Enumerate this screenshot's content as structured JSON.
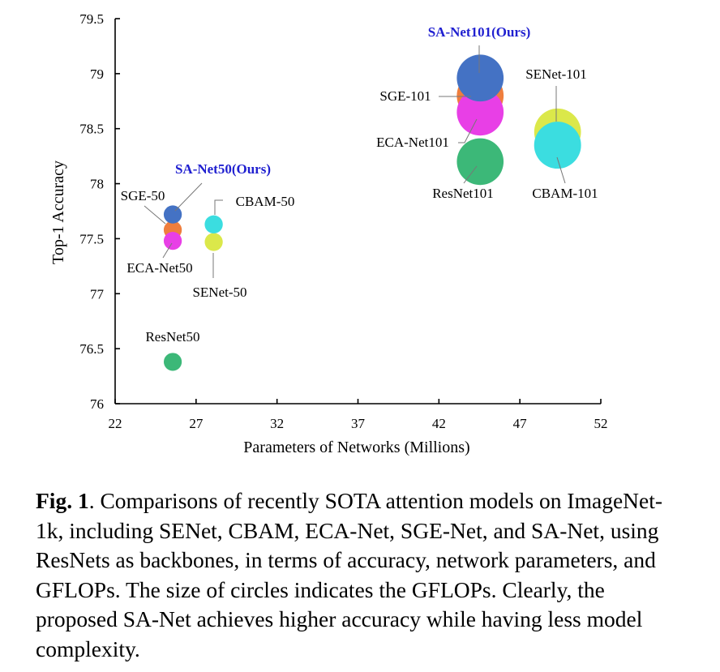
{
  "chart_data": {
    "type": "scatter",
    "title": "",
    "xlabel": "Parameters of Networks  (Millions)",
    "ylabel": "Top-1 Accuracy",
    "xlim": [
      22,
      52
    ],
    "ylim": [
      76,
      79.5
    ],
    "xticks": [
      "22",
      "27",
      "32",
      "37",
      "42",
      "47",
      "52"
    ],
    "yticks": [
      "76",
      "76.5",
      "77",
      "77.5",
      "78",
      "78.5",
      "79",
      "79.5"
    ],
    "size_encodes": "GFLOPs",
    "points": [
      {
        "label": "ResNet50",
        "x": 25.56,
        "y": 76.38,
        "gflops": 4.12,
        "color": "#3cb878",
        "highlight": false
      },
      {
        "label": "SENet-50",
        "x": 28.09,
        "y": 77.47,
        "gflops": 4.13,
        "color": "#dbe84a",
        "highlight": false
      },
      {
        "label": "CBAM-50",
        "x": 28.09,
        "y": 77.63,
        "gflops": 4.14,
        "color": "#3bdde0",
        "highlight": false
      },
      {
        "label": "SGE-50",
        "x": 25.56,
        "y": 77.58,
        "gflops": 4.13,
        "color": "#ef7e3d",
        "highlight": false
      },
      {
        "label": "ECA-Net50",
        "x": 25.56,
        "y": 77.48,
        "gflops": 4.13,
        "color": "#e83fe6",
        "highlight": false
      },
      {
        "label": "SA-Net50(Ours)",
        "x": 25.56,
        "y": 77.72,
        "gflops": 4.13,
        "color": "#4472c4",
        "highlight": true
      },
      {
        "label": "ResNet101",
        "x": 44.55,
        "y": 78.2,
        "gflops": 7.85,
        "color": "#3cb878",
        "highlight": false
      },
      {
        "label": "SENet-101",
        "x": 49.33,
        "y": 78.47,
        "gflops": 7.86,
        "color": "#dbe84a",
        "highlight": false
      },
      {
        "label": "CBAM-101",
        "x": 49.33,
        "y": 78.35,
        "gflops": 7.88,
        "color": "#3bdde0",
        "highlight": false
      },
      {
        "label": "SGE-101",
        "x": 44.55,
        "y": 78.8,
        "gflops": 7.86,
        "color": "#ef7e3d",
        "highlight": false
      },
      {
        "label": "ECA-Net101",
        "x": 44.55,
        "y": 78.65,
        "gflops": 7.86,
        "color": "#e83fe6",
        "highlight": false
      },
      {
        "label": "SA-Net101(Ours)",
        "x": 44.55,
        "y": 78.96,
        "gflops": 7.86,
        "color": "#4472c4",
        "highlight": true
      }
    ]
  },
  "caption": {
    "fig_label": "Fig. 1",
    "text": ". Comparisons of recently SOTA attention models on ImageNet-1k, including SENet, CBAM, ECA-Net, SGE-Net, and SA-Net, using ResNets as backbones, in terms of accuracy, network parameters, and GFLOPs. The size of circles indicates the GFLOPs. Clearly, the proposed SA-Net achieves higher accuracy while having less model complexity."
  }
}
